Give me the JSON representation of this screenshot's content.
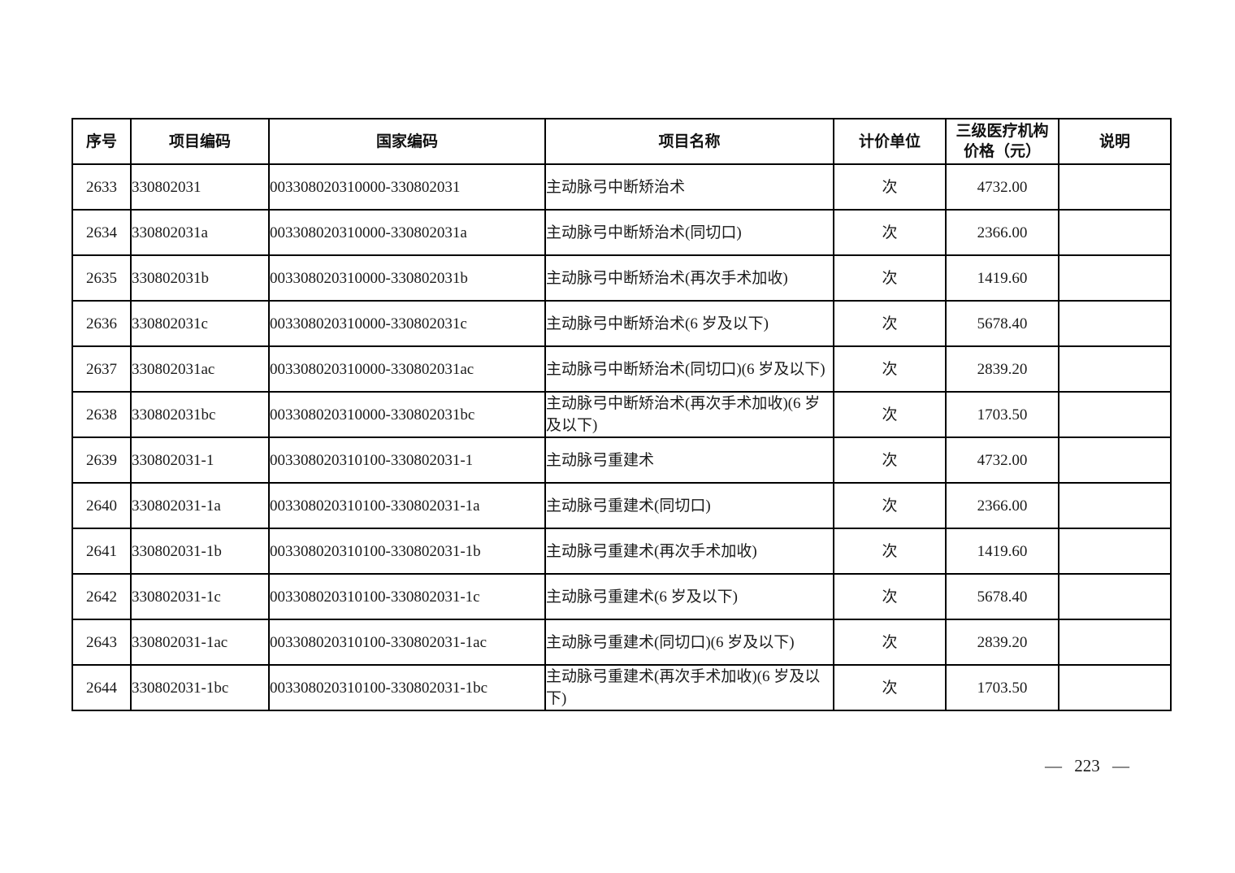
{
  "page": {
    "page_number": "— 223 —"
  },
  "table": {
    "columns": [
      {
        "key": "index",
        "label": "序号"
      },
      {
        "key": "project_code",
        "label": "项目编码"
      },
      {
        "key": "national_code",
        "label": "国家编码"
      },
      {
        "key": "project_name",
        "label": "项目名称"
      },
      {
        "key": "unit",
        "label": "计价单位"
      },
      {
        "key": "price",
        "label_line1": "三级医疗机构",
        "label_line2": "价格（元）"
      },
      {
        "key": "note",
        "label": "说明"
      }
    ],
    "rows": [
      {
        "index": "2633",
        "project_code": "330802031",
        "national_code": "003308020310000-330802031",
        "project_name": "主动脉弓中断矫治术",
        "unit": "次",
        "price": "4732.00",
        "note": ""
      },
      {
        "index": "2634",
        "project_code": "330802031a",
        "national_code": "003308020310000-330802031a",
        "project_name": "主动脉弓中断矫治术(同切口)",
        "unit": "次",
        "price": "2366.00",
        "note": ""
      },
      {
        "index": "2635",
        "project_code": "330802031b",
        "national_code": "003308020310000-330802031b",
        "project_name": "主动脉弓中断矫治术(再次手术加收)",
        "unit": "次",
        "price": "1419.60",
        "note": ""
      },
      {
        "index": "2636",
        "project_code": "330802031c",
        "national_code": "003308020310000-330802031c",
        "project_name": "主动脉弓中断矫治术(6 岁及以下)",
        "unit": "次",
        "price": "5678.40",
        "note": ""
      },
      {
        "index": "2637",
        "project_code": "330802031ac",
        "national_code": "003308020310000-330802031ac",
        "project_name": "主动脉弓中断矫治术(同切口)(6 岁及以下)",
        "unit": "次",
        "price": "2839.20",
        "note": ""
      },
      {
        "index": "2638",
        "project_code": "330802031bc",
        "national_code": "003308020310000-330802031bc",
        "project_name": "主动脉弓中断矫治术(再次手术加收)(6 岁及以下)",
        "unit": "次",
        "price": "1703.50",
        "note": ""
      },
      {
        "index": "2639",
        "project_code": "330802031-1",
        "national_code": "003308020310100-330802031-1",
        "project_name": "主动脉弓重建术",
        "unit": "次",
        "price": "4732.00",
        "note": ""
      },
      {
        "index": "2640",
        "project_code": "330802031-1a",
        "national_code": "003308020310100-330802031-1a",
        "project_name": "主动脉弓重建术(同切口)",
        "unit": "次",
        "price": "2366.00",
        "note": ""
      },
      {
        "index": "2641",
        "project_code": "330802031-1b",
        "national_code": "003308020310100-330802031-1b",
        "project_name": "主动脉弓重建术(再次手术加收)",
        "unit": "次",
        "price": "1419.60",
        "note": ""
      },
      {
        "index": "2642",
        "project_code": "330802031-1c",
        "national_code": "003308020310100-330802031-1c",
        "project_name": "主动脉弓重建术(6 岁及以下)",
        "unit": "次",
        "price": "5678.40",
        "note": ""
      },
      {
        "index": "2643",
        "project_code": "330802031-1ac",
        "national_code": "003308020310100-330802031-1ac",
        "project_name": "主动脉弓重建术(同切口)(6 岁及以下)",
        "unit": "次",
        "price": "2839.20",
        "note": ""
      },
      {
        "index": "2644",
        "project_code": "330802031-1bc",
        "national_code": "003308020310100-330802031-1bc",
        "project_name": "主动脉弓重建术(再次手术加收)(6 岁及以下)",
        "unit": "次",
        "price": "1703.50",
        "note": ""
      }
    ]
  }
}
